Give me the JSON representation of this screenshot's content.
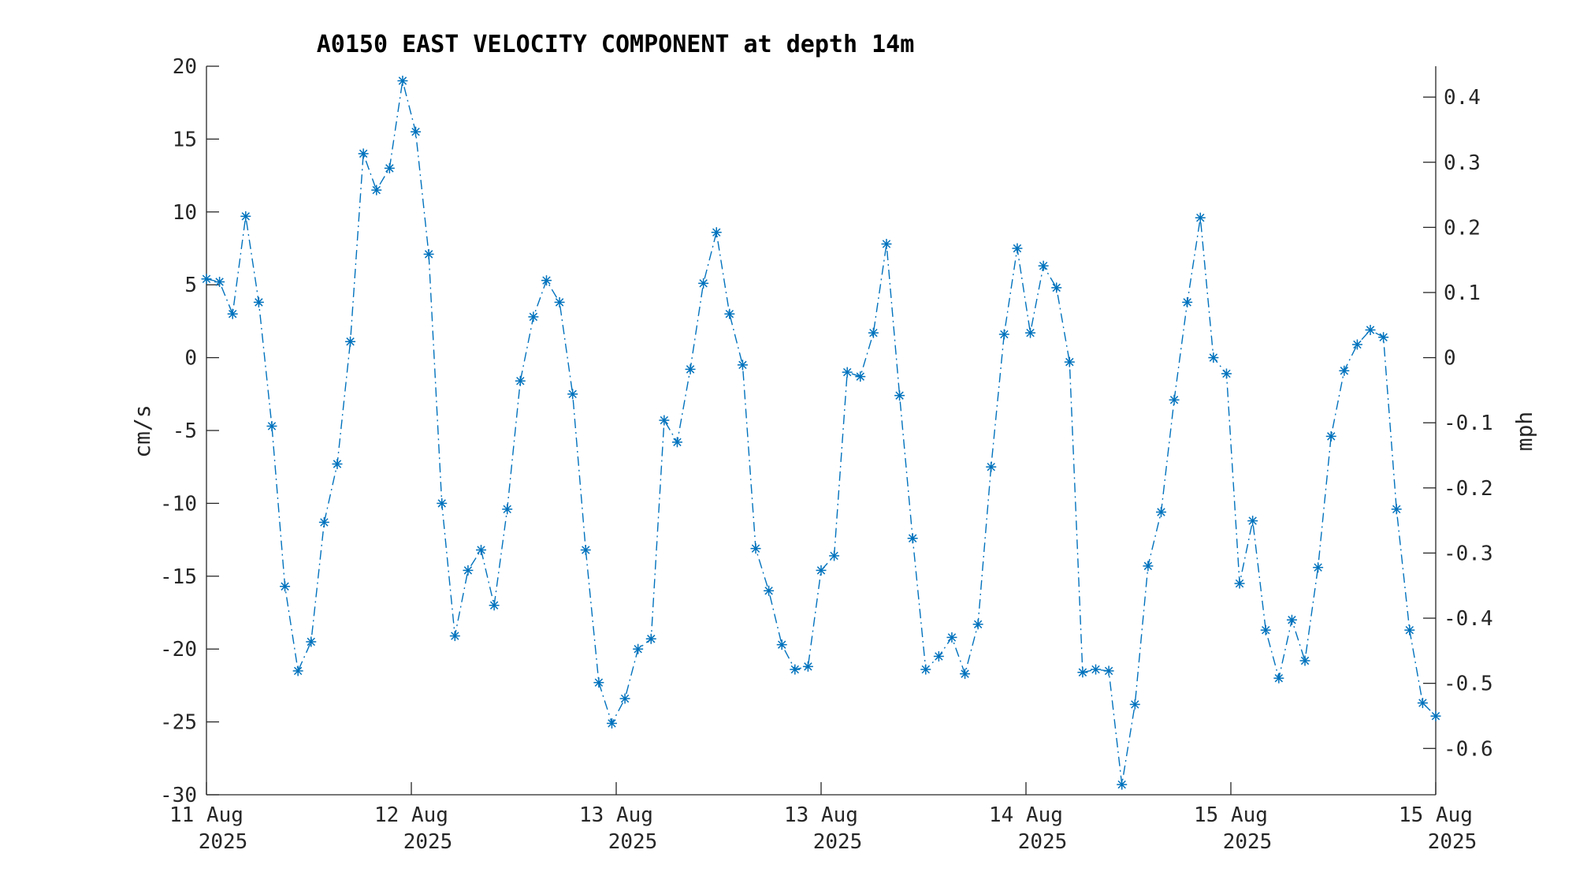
{
  "chart_data": {
    "type": "line",
    "title": "A0150 EAST VELOCITY COMPONENT at depth 14m",
    "ylabel": "cm/s",
    "y2label": "mph",
    "ylim": [
      -30,
      20
    ],
    "y2lim": [
      -0.6711,
      0.4474
    ],
    "yticks": [
      "20",
      "15",
      "10",
      "5",
      "0",
      "-5",
      "-10",
      "-15",
      "-20",
      "-25",
      "-30"
    ],
    "y2ticks": [
      "0.4",
      "0.3",
      "0.2",
      "0.1",
      "0",
      "-0.1",
      "-0.2",
      "-0.3",
      "-0.4",
      "-0.5",
      "-0.6"
    ],
    "xticks": [
      {
        "line1": "11 Aug",
        "line2": "2025"
      },
      {
        "line1": "12 Aug",
        "line2": "2025"
      },
      {
        "line1": "13 Aug",
        "line2": "2025"
      },
      {
        "line1": "13 Aug",
        "line2": "2025"
      },
      {
        "line1": "14 Aug",
        "line2": "2025"
      },
      {
        "line1": "15 Aug",
        "line2": "2025"
      },
      {
        "line1": "15 Aug",
        "line2": "2025"
      }
    ],
    "grid": false,
    "line_style": "dash-dot",
    "marker": "asterisk",
    "color": "#0072BD",
    "values": [
      5.4,
      5.2,
      3.0,
      9.7,
      3.8,
      -4.7,
      -15.7,
      -21.5,
      -19.5,
      -11.3,
      -7.3,
      1.1,
      14.0,
      11.5,
      13.0,
      19.0,
      15.5,
      7.1,
      -10.0,
      -19.1,
      -14.6,
      -13.2,
      -17.0,
      -10.4,
      -1.6,
      2.8,
      5.3,
      3.8,
      -2.5,
      -13.2,
      -22.3,
      -25.1,
      -23.4,
      -20.0,
      -19.3,
      -4.3,
      -5.8,
      -0.8,
      5.1,
      8.6,
      3.0,
      -0.5,
      -13.1,
      -16.0,
      -19.7,
      -21.4,
      -21.2,
      -14.6,
      -13.6,
      -1.0,
      -1.3,
      1.7,
      7.8,
      -2.6,
      -12.4,
      -21.4,
      -20.5,
      -19.2,
      -21.7,
      -18.3,
      -7.5,
      1.6,
      7.5,
      1.7,
      6.3,
      4.8,
      -0.3,
      -21.6,
      -21.4,
      -21.5,
      -29.3,
      -23.8,
      -14.3,
      -10.6,
      -2.9,
      3.8,
      9.6,
      0.0,
      -1.1,
      -15.5,
      -11.2,
      -18.7,
      -22.0,
      -18.0,
      -20.8,
      -14.4,
      -5.4,
      -0.9,
      0.9,
      1.9,
      1.4,
      -10.4,
      -18.7,
      -23.7,
      -24.6
    ]
  }
}
